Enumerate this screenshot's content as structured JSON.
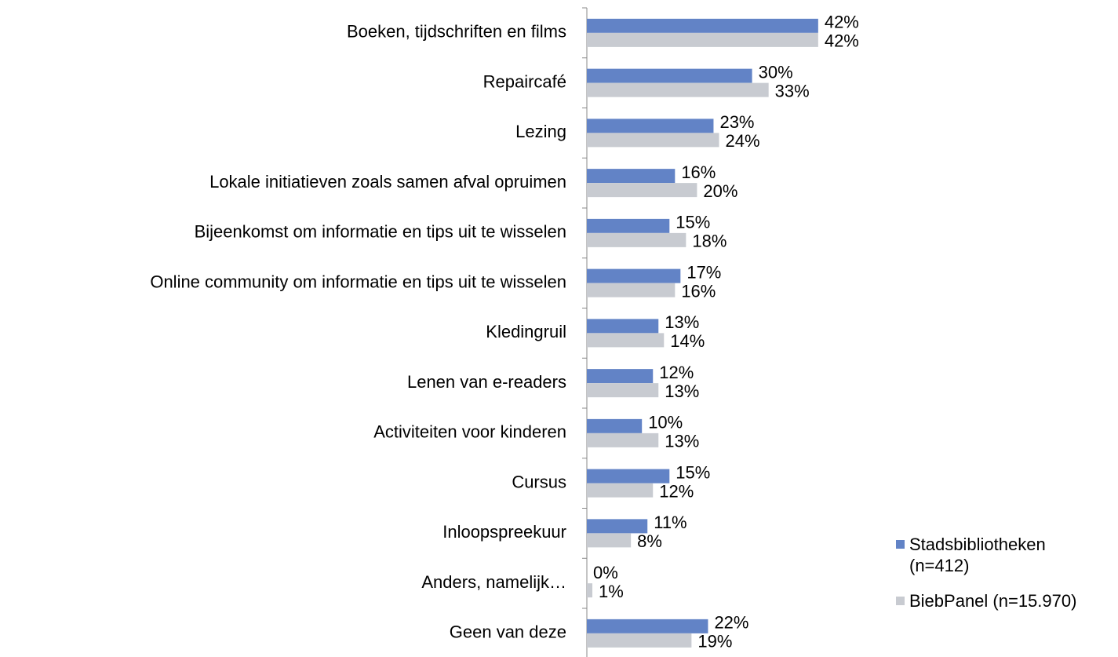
{
  "chart_data": {
    "type": "hbar",
    "categories": [
      "Boeken, tijdschriften en films",
      "Repaircafé",
      "Lezing",
      "Lokale initiatieven zoals samen afval opruimen",
      "Bijeenkomst om informatie en tips uit te wisselen",
      "Online community om informatie en tips uit te wisselen",
      "Kledingruil",
      "Lenen van e-readers",
      "Activiteiten voor kinderen",
      "Cursus",
      "Inloopspreekuur",
      "Anders, namelijk…",
      "Geen van deze"
    ],
    "series": [
      {
        "name": "Stadsbibliotheken (n=412)",
        "color": "#6283c6",
        "values": [
          42,
          30,
          23,
          16,
          15,
          17,
          13,
          12,
          10,
          15,
          11,
          0,
          22
        ],
        "value_labels": [
          "42%",
          "30%",
          "23%",
          "16%",
          "15%",
          "17%",
          "13%",
          "12%",
          "10%",
          "15%",
          "11%",
          "0%",
          "22%"
        ]
      },
      {
        "name": "BiebPanel (n=15.970)",
        "color": "#c8cbd1",
        "values": [
          42,
          33,
          24,
          20,
          18,
          16,
          14,
          13,
          13,
          12,
          8,
          1,
          19
        ],
        "value_labels": [
          "42%",
          "33%",
          "24%",
          "20%",
          "18%",
          "16%",
          "14%",
          "13%",
          "13%",
          "12%",
          "8%",
          "1%",
          "19%"
        ]
      }
    ],
    "legend": "right"
  }
}
